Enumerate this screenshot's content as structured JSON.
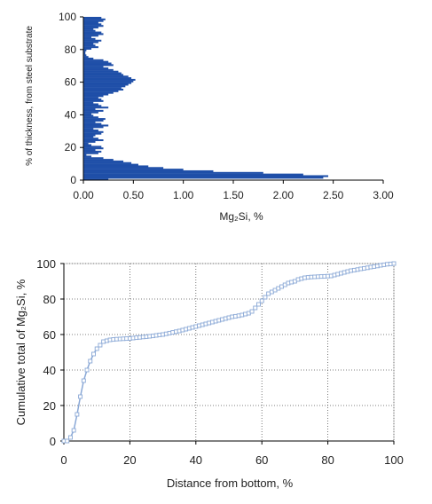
{
  "chart_data": [
    {
      "type": "bar",
      "orientation": "horizontal",
      "xlabel": "Mg₂Si, %",
      "ylabel": "% of thickness, from steel substrate",
      "xlim": [
        0,
        3
      ],
      "ylim": [
        0,
        100
      ],
      "xticks": [
        "0.00",
        "0.50",
        "1.00",
        "1.50",
        "2.00",
        "2.50",
        "3.00"
      ],
      "yticks": [
        "0",
        "20",
        "40",
        "60",
        "80",
        "100"
      ],
      "grid": false,
      "color": "#1f4fa8",
      "y": [
        0,
        1,
        2,
        3,
        4,
        5,
        6,
        7,
        8,
        9,
        10,
        11,
        12,
        13,
        14,
        15,
        16,
        17,
        18,
        19,
        20,
        21,
        22,
        23,
        24,
        25,
        26,
        27,
        28,
        29,
        30,
        31,
        32,
        33,
        34,
        35,
        36,
        37,
        38,
        39,
        40,
        41,
        42,
        43,
        44,
        45,
        46,
        47,
        48,
        49,
        50,
        51,
        52,
        53,
        54,
        55,
        56,
        57,
        58,
        59,
        60,
        61,
        62,
        63,
        64,
        65,
        66,
        67,
        68,
        69,
        70,
        71,
        72,
        73,
        74,
        75,
        76,
        77,
        78,
        79,
        80,
        81,
        82,
        83,
        84,
        85,
        86,
        87,
        88,
        89,
        90,
        91,
        92,
        93,
        94,
        95,
        96,
        97,
        98,
        99
      ],
      "values": [
        0.25,
        2.4,
        2.45,
        2.2,
        1.8,
        1.3,
        1.0,
        0.8,
        0.65,
        0.55,
        0.48,
        0.4,
        0.3,
        0.2,
        0.08,
        0.03,
        0.15,
        0.18,
        0.12,
        0.2,
        0.18,
        0.08,
        0.05,
        0.12,
        0.2,
        0.15,
        0.1,
        0.12,
        0.18,
        0.2,
        0.15,
        0.1,
        0.2,
        0.25,
        0.18,
        0.12,
        0.2,
        0.22,
        0.15,
        0.1,
        0.08,
        0.15,
        0.2,
        0.12,
        0.25,
        0.18,
        0.15,
        0.1,
        0.2,
        0.18,
        0.15,
        0.2,
        0.25,
        0.3,
        0.35,
        0.4,
        0.38,
        0.42,
        0.45,
        0.48,
        0.5,
        0.52,
        0.48,
        0.45,
        0.4,
        0.38,
        0.35,
        0.3,
        0.25,
        0.2,
        0.3,
        0.28,
        0.25,
        0.2,
        0.1,
        0.05,
        0.03,
        0.02,
        0.02,
        0.03,
        0.08,
        0.15,
        0.12,
        0.1,
        0.15,
        0.18,
        0.12,
        0.08,
        0.15,
        0.2,
        0.18,
        0.12,
        0.1,
        0.15,
        0.2,
        0.18,
        0.15,
        0.2,
        0.22,
        0.18
      ]
    },
    {
      "type": "line",
      "xlabel": "Distance from bottom, %",
      "ylabel": "Cumulative total of Mg₂Si, %",
      "xlim": [
        0,
        100
      ],
      "ylim": [
        0,
        100
      ],
      "xticks": [
        "0",
        "20",
        "40",
        "60",
        "80",
        "100"
      ],
      "yticks": [
        "0",
        "20",
        "40",
        "60",
        "80",
        "100"
      ],
      "grid": true,
      "color": "#8aa8d6",
      "x": [
        0,
        1,
        2,
        3,
        4,
        5,
        6,
        7,
        8,
        9,
        10,
        11,
        12,
        13,
        14,
        15,
        16,
        17,
        18,
        19,
        20,
        21,
        22,
        23,
        24,
        25,
        26,
        27,
        28,
        29,
        30,
        31,
        32,
        33,
        34,
        35,
        36,
        37,
        38,
        39,
        40,
        41,
        42,
        43,
        44,
        45,
        46,
        47,
        48,
        49,
        50,
        51,
        52,
        53,
        54,
        55,
        56,
        57,
        58,
        59,
        60,
        61,
        62,
        63,
        64,
        65,
        66,
        67,
        68,
        69,
        70,
        71,
        72,
        73,
        74,
        75,
        76,
        77,
        78,
        79,
        80,
        81,
        82,
        83,
        84,
        85,
        86,
        87,
        88,
        89,
        90,
        91,
        92,
        93,
        94,
        95,
        96,
        97,
        98,
        99,
        100
      ],
      "y": [
        0,
        0,
        2,
        6,
        15,
        25,
        34,
        40,
        45,
        49,
        52,
        54,
        56,
        56.5,
        57,
        57.2,
        57.4,
        57.5,
        57.6,
        57.7,
        57.8,
        58,
        58.2,
        58.4,
        58.6,
        58.8,
        59,
        59.2,
        59.5,
        59.8,
        60,
        60.4,
        60.8,
        61.2,
        61.6,
        62,
        62.5,
        63,
        63.5,
        64,
        64.5,
        65,
        65.5,
        66,
        66.5,
        67,
        67.5,
        68,
        68.5,
        69,
        69.5,
        70,
        70.3,
        70.6,
        71,
        71.5,
        72,
        73,
        75,
        77,
        79,
        81,
        83,
        84,
        85,
        86,
        87,
        88,
        89,
        89.5,
        90,
        91,
        91.5,
        92,
        92.2,
        92.4,
        92.5,
        92.6,
        92.7,
        92.8,
        92.9,
        93,
        93.5,
        94,
        94.5,
        95,
        95.5,
        96,
        96.3,
        96.6,
        97,
        97.3,
        97.6,
        98,
        98.3,
        98.6,
        99,
        99.3,
        99.6,
        99.8,
        100
      ]
    }
  ]
}
